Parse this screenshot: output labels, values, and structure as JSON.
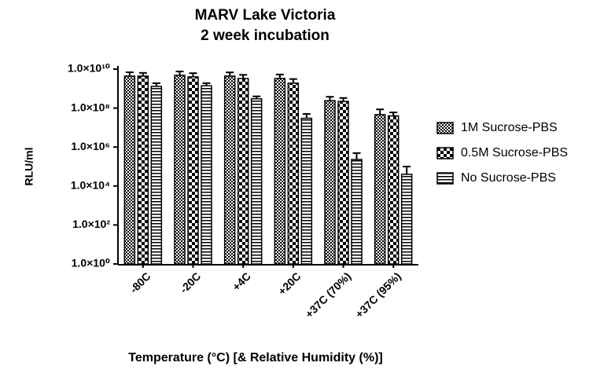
{
  "chart_data": {
    "type": "bar",
    "title": [
      "MARV Lake Victoria",
      "2 week incubation"
    ],
    "xlabel": "Temperature (°C) [& Relative Humidity (%)]",
    "ylabel": "RLU/ml",
    "categories": [
      "-80C",
      "-20C",
      "+4C",
      "+20C",
      "+37C (70%)",
      "+37C (95%)"
    ],
    "log_scale": true,
    "ylim": [
      1,
      10000000000
    ],
    "yticks": [
      {
        "value": 1,
        "label": "1.0×10⁰"
      },
      {
        "value": 100,
        "label": "1.0×10²"
      },
      {
        "value": 10000,
        "label": "1.0×10⁴"
      },
      {
        "value": 1000000,
        "label": "1.0×10⁶"
      },
      {
        "value": 100000000,
        "label": "1.0×10⁸"
      },
      {
        "value": 10000000000,
        "label": "1.0×10¹⁰"
      }
    ],
    "legend": "right",
    "series": [
      {
        "name": "1M Sucrose-PBS",
        "color": "#000000",
        "pattern": "fine-checker",
        "values": [
          4400000000,
          4800000000,
          4400000000,
          3300000000,
          240000000,
          46000000
        ],
        "errors": [
          2500000000,
          2800000000,
          2400000000,
          2000000000,
          140000000,
          40000000
        ]
      },
      {
        "name": "0.5M Sucrose-PBS",
        "color": "#000000",
        "pattern": "coarse-checker",
        "values": [
          4400000000,
          4000000000,
          3300000000,
          1900000000,
          220000000,
          40000000
        ],
        "errors": [
          2000000000,
          2200000000,
          1800000000,
          1200000000,
          110000000,
          20000000
        ]
      },
      {
        "name": "No Sucrose-PBS",
        "color": "#000000",
        "pattern": "stripes",
        "values": [
          1300000000,
          1400000000,
          300000000,
          30000000,
          230000,
          40000
        ],
        "errors": [
          600000000,
          500000000,
          100000000,
          20000000,
          260000,
          60000
        ]
      }
    ]
  }
}
